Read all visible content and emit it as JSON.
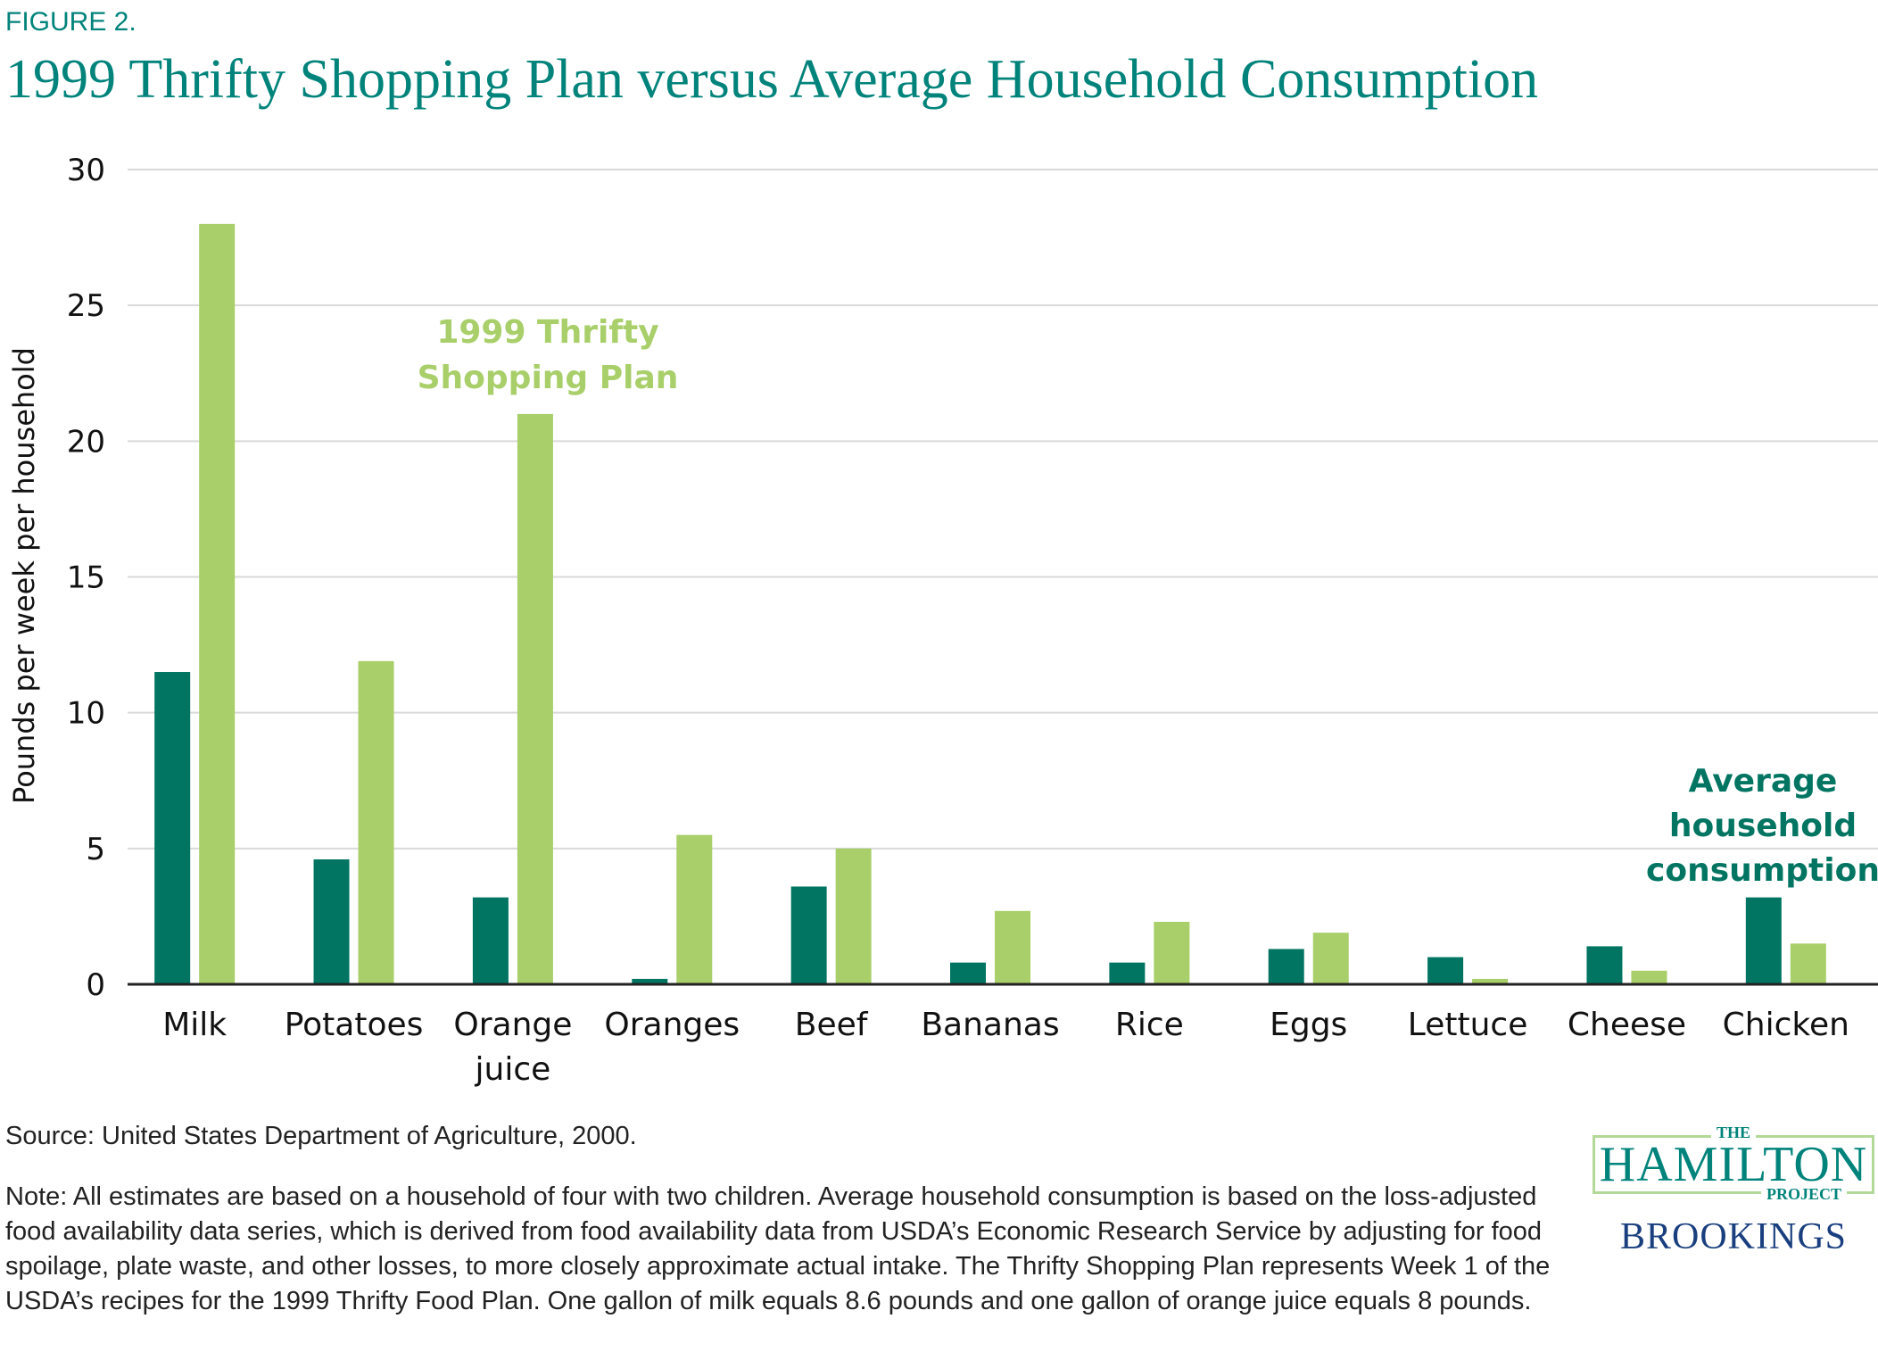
{
  "figure_label": "FIGURE 2.",
  "title": "1999 Thrifty Shopping Plan versus Average Household Consumption",
  "colors": {
    "title": "#00837a",
    "avg_bar": "#017562",
    "plan_bar": "#a8cf69",
    "grid": "#d9d9d9",
    "axis": "#222222",
    "brookings": "#1a3f7f",
    "logo_border": "#b3d998"
  },
  "chart_data": {
    "type": "bar",
    "title": "1999 Thrifty Shopping Plan versus Average Household Consumption",
    "xlabel": "",
    "ylabel": "Pounds per week per household",
    "ylim": [
      0,
      30
    ],
    "yticks": [
      0,
      5,
      10,
      15,
      20,
      25,
      30
    ],
    "grid": true,
    "legend": "inline annotations",
    "categories": [
      "Milk",
      "Potatoes",
      "Orange juice",
      "Oranges",
      "Beef",
      "Bananas",
      "Rice",
      "Eggs",
      "Lettuce",
      "Cheese",
      "Chicken"
    ],
    "category_lines": [
      [
        "Milk"
      ],
      [
        "Potatoes"
      ],
      [
        "Orange",
        "juice"
      ],
      [
        "Oranges"
      ],
      [
        "Beef"
      ],
      [
        "Bananas"
      ],
      [
        "Rice"
      ],
      [
        "Eggs"
      ],
      [
        "Lettuce"
      ],
      [
        "Cheese"
      ],
      [
        "Chicken"
      ]
    ],
    "series": [
      {
        "name": "Average household consumption",
        "color": "#017562",
        "values": [
          11.5,
          4.6,
          3.2,
          0.2,
          3.6,
          0.8,
          0.8,
          1.3,
          1.0,
          1.4,
          3.2
        ]
      },
      {
        "name": "1999 Thrifty Shopping Plan",
        "color": "#a8cf69",
        "values": [
          28.0,
          11.9,
          21.0,
          5.5,
          5.0,
          2.7,
          2.3,
          1.9,
          0.2,
          0.5,
          1.5
        ]
      }
    ],
    "annotations": [
      {
        "series": "1999 Thrifty Shopping Plan",
        "lines": [
          "1999 Thrifty",
          "Shopping Plan"
        ],
        "near_category": "Orange juice"
      },
      {
        "series": "Average household consumption",
        "lines": [
          "Average",
          "household",
          "consumption"
        ],
        "near_category": "Chicken"
      }
    ]
  },
  "source": "Source: United States Department of Agriculture, 2000.",
  "note": "Note: All estimates are based on a household of four with two children. Average household consumption is based on the loss-adjusted food availability data series, which is derived from food availability data from USDA’s Economic Research Service by adjusting for food spoilage, plate waste, and other losses, to more closely approximate actual intake. The Thrifty Shopping Plan represents Week 1 of the USDA’s recipes for the 1999 Thrifty Food Plan. One gallon of milk equals 8.6 pounds and one gallon of orange juice equals 8 pounds.",
  "logo": {
    "the": "THE",
    "hamilton": "HAMILTON",
    "project": "PROJECT",
    "brookings": "BROOKINGS"
  }
}
